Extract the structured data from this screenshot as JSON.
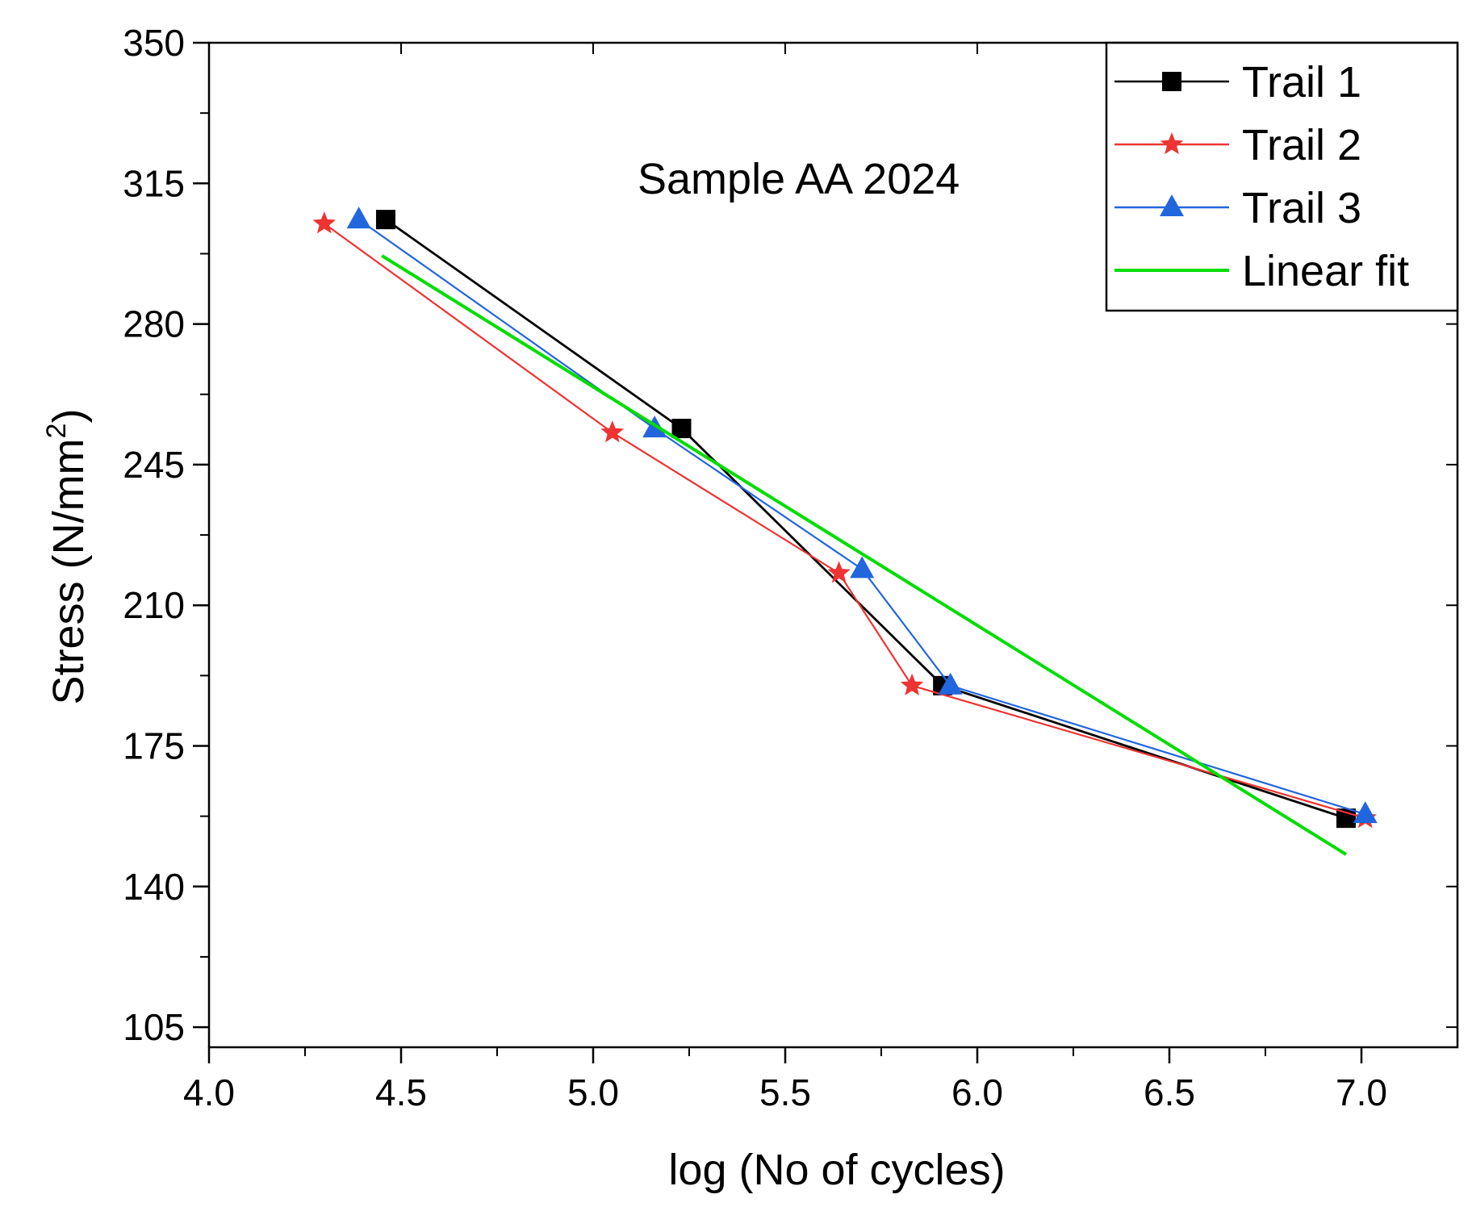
{
  "chart_data": {
    "type": "line",
    "title": "",
    "annotation": "Sample AA 2024",
    "xlabel": "log (No of cycles)",
    "ylabel_main": "Stress (N/mm",
    "ylabel_sup": "2",
    "ylabel_close": ")",
    "xlim": [
      4.0,
      7.25
    ],
    "ylim": [
      100,
      350
    ],
    "xticks": [
      4.0,
      4.5,
      5.0,
      5.5,
      6.0,
      6.5,
      7.0
    ],
    "xtick_labels": [
      "4.0",
      "4.5",
      "5.0",
      "5.5",
      "6.0",
      "6.5",
      "7.0"
    ],
    "yticks": [
      105,
      140,
      175,
      210,
      245,
      280,
      315,
      350
    ],
    "ytick_labels": [
      "105",
      "140",
      "175",
      "210",
      "245",
      "280",
      "315",
      "350"
    ],
    "legend_position": "top-right",
    "series": [
      {
        "name": "Trail 1",
        "marker": "square",
        "color": "#000000",
        "x": [
          4.46,
          5.23,
          5.91,
          6.96
        ],
        "y": [
          306,
          254,
          190,
          157
        ]
      },
      {
        "name": "Trail 2",
        "marker": "star",
        "color": "#ee3333",
        "x": [
          4.3,
          5.05,
          5.64,
          5.83,
          7.01
        ],
        "y": [
          305,
          253,
          218,
          190,
          157
        ]
      },
      {
        "name": "Trail 3",
        "marker": "triangle",
        "color": "#2266dd",
        "x": [
          4.39,
          5.16,
          5.7,
          5.93,
          7.01
        ],
        "y": [
          306,
          254,
          219,
          190,
          158
        ]
      },
      {
        "name": "Linear fit",
        "marker": "none",
        "color": "#00dd00",
        "x": [
          4.45,
          6.96
        ],
        "y": [
          297,
          148
        ]
      }
    ]
  }
}
